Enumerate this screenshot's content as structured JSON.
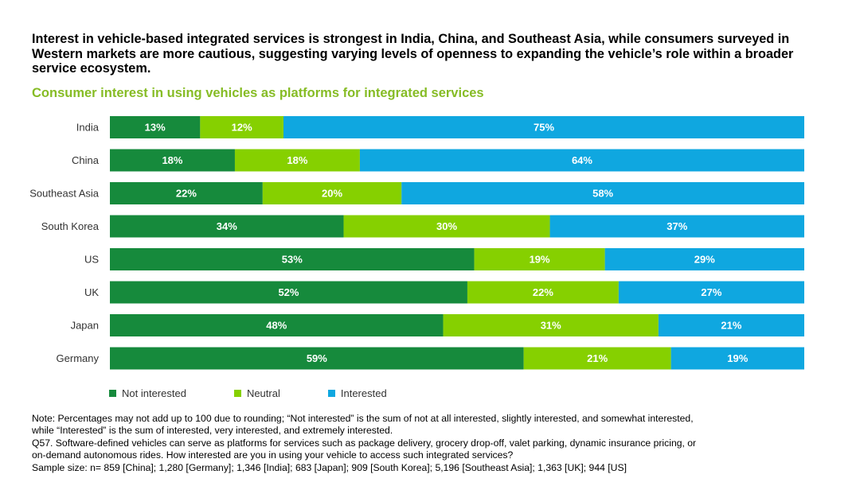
{
  "headline": "Interest in vehicle-based integrated services is strongest in India, China, and Southeast Asia, while consumers surveyed in Western markets are more cautious, suggesting varying levels of openness to expanding the vehicle’s role within a broader service ecosystem.",
  "chart_data": {
    "type": "bar",
    "orientation": "horizontal",
    "stacked": true,
    "title": "Consumer interest in using vehicles as platforms for integrated services",
    "categories": [
      "India",
      "China",
      "Southeast Asia",
      "South Korea",
      "US",
      "UK",
      "Japan",
      "Germany"
    ],
    "series": [
      {
        "name": "Not interested",
        "color": "#168a3c",
        "values": [
          13,
          18,
          22,
          34,
          53,
          52,
          48,
          59
        ]
      },
      {
        "name": "Neutral",
        "color": "#86d000",
        "values": [
          12,
          18,
          20,
          30,
          19,
          22,
          31,
          21
        ]
      },
      {
        "name": "Interested",
        "color": "#0fa7e0",
        "values": [
          75,
          64,
          58,
          37,
          29,
          27,
          21,
          19
        ]
      }
    ],
    "value_suffix": "%",
    "xlim": [
      0,
      100
    ],
    "grid": false,
    "legend_position": "bottom-left"
  },
  "notes": [
    "Note: Percentages may not add up to 100 due to rounding; “Not interested” is the sum of not at all interested, slightly interested, and somewhat interested,",
    "while “Interested” is the sum of interested, very interested, and extremely interested.",
    "Q57. Software-defined vehicles can serve as platforms for services such as package delivery, grocery drop-off, valet parking, dynamic insurance pricing, or",
    "on-demand autonomous rides. How interested are you in using your vehicle to access such integrated services?",
    "Sample size: n= 859 [China]; 1,280 [Germany]; 1,346 [India]; 683 [Japan]; 909 [South Korea]; 5,196 [Southeast Asia]; 1,363 [UK]; 944 [US]"
  ]
}
